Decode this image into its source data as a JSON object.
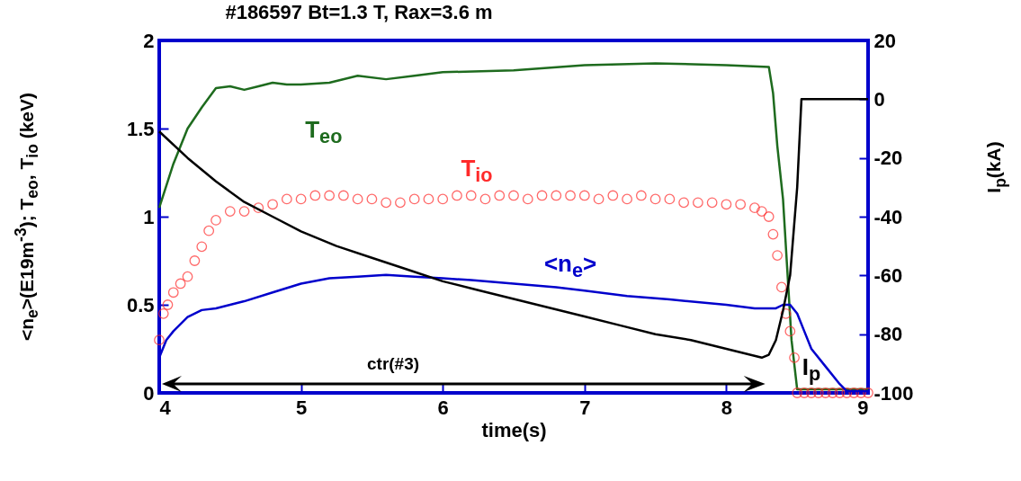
{
  "chart_data": {
    "type": "line",
    "title": "#186597   Bt=1.3 T, Rax=3.6 m",
    "xlabel": "time(s)",
    "ylabel": "<n$_{e}$>(E19m$^{-3}$); T$_{eo}$, T$_{io}$ (keV)",
    "y2label": "I$_{p}$(kA)",
    "annotations": [
      "ctr(#3)"
    ],
    "xlim": [
      4,
      9
    ],
    "xticks": [
      4,
      5,
      6,
      7,
      8,
      9
    ],
    "ylim": [
      0,
      2
    ],
    "yticks": [
      0,
      0.5,
      1,
      1.5,
      2
    ],
    "y2lim": [
      -100,
      20
    ],
    "y2ticks": [
      -100,
      -80,
      -60,
      -40,
      -20,
      0,
      20
    ],
    "grid": false,
    "series": [
      {
        "name": "T$_{eo}$",
        "color": "#1e6b1e",
        "x": [
          4.0,
          4.1,
          4.2,
          4.3,
          4.4,
          4.5,
          4.6,
          4.7,
          4.8,
          4.9,
          5.0,
          5.2,
          5.4,
          5.6,
          5.8,
          6.0,
          6.5,
          7.0,
          7.5,
          8.0,
          8.3,
          8.33,
          8.36,
          8.4,
          8.43,
          8.46,
          8.5,
          8.6,
          8.7,
          8.8,
          8.9,
          9.0
        ],
        "values": [
          1.05,
          1.3,
          1.5,
          1.62,
          1.73,
          1.74,
          1.72,
          1.74,
          1.76,
          1.75,
          1.75,
          1.76,
          1.8,
          1.78,
          1.8,
          1.82,
          1.83,
          1.86,
          1.87,
          1.86,
          1.85,
          1.7,
          1.4,
          1.1,
          0.7,
          0.3,
          0.02,
          0.02,
          0.02,
          0.02,
          0.02,
          0.02
        ]
      },
      {
        "name": "T$_{io}$",
        "type": "scatter",
        "marker": "circle",
        "color": "#ff2a2a",
        "x": [
          4.0,
          4.03,
          4.06,
          4.1,
          4.15,
          4.2,
          4.25,
          4.3,
          4.35,
          4.4,
          4.5,
          4.6,
          4.7,
          4.8,
          4.9,
          5.0,
          5.1,
          5.2,
          5.3,
          5.4,
          5.5,
          5.6,
          5.7,
          5.8,
          5.9,
          6.0,
          6.1,
          6.2,
          6.3,
          6.4,
          6.5,
          6.6,
          6.7,
          6.8,
          6.9,
          7.0,
          7.1,
          7.2,
          7.3,
          7.4,
          7.5,
          7.6,
          7.7,
          7.8,
          7.9,
          8.0,
          8.1,
          8.2,
          8.25,
          8.3,
          8.33,
          8.36,
          8.39,
          8.42,
          8.45,
          8.48,
          8.5,
          8.55,
          8.6,
          8.65,
          8.7,
          8.75,
          8.8,
          8.85,
          8.9,
          8.95,
          9.0
        ],
        "values": [
          0.3,
          0.45,
          0.5,
          0.57,
          0.62,
          0.66,
          0.75,
          0.83,
          0.92,
          0.98,
          1.03,
          1.03,
          1.05,
          1.07,
          1.1,
          1.1,
          1.12,
          1.12,
          1.12,
          1.1,
          1.1,
          1.08,
          1.08,
          1.1,
          1.1,
          1.1,
          1.12,
          1.12,
          1.1,
          1.12,
          1.12,
          1.1,
          1.12,
          1.12,
          1.12,
          1.12,
          1.1,
          1.12,
          1.1,
          1.12,
          1.1,
          1.1,
          1.08,
          1.08,
          1.08,
          1.07,
          1.07,
          1.05,
          1.03,
          1.0,
          0.9,
          0.78,
          0.6,
          0.45,
          0.35,
          0.2,
          0,
          0,
          0,
          0,
          0,
          0,
          0,
          0,
          0,
          0,
          0
        ]
      },
      {
        "name": "<n$_{e}$>",
        "color": "#0000cc",
        "x": [
          4.0,
          4.05,
          4.1,
          4.2,
          4.3,
          4.4,
          4.5,
          4.6,
          4.8,
          5.0,
          5.2,
          5.4,
          5.6,
          5.8,
          6.0,
          6.2,
          6.5,
          6.8,
          7.0,
          7.3,
          7.6,
          8.0,
          8.2,
          8.3,
          8.35,
          8.4,
          8.45,
          8.5,
          8.55,
          8.6,
          8.7,
          8.8,
          8.85,
          9.0
        ],
        "values": [
          0.2,
          0.3,
          0.35,
          0.43,
          0.47,
          0.48,
          0.5,
          0.52,
          0.57,
          0.62,
          0.65,
          0.66,
          0.67,
          0.66,
          0.65,
          0.64,
          0.62,
          0.6,
          0.58,
          0.55,
          0.53,
          0.5,
          0.48,
          0.48,
          0.48,
          0.5,
          0.5,
          0.45,
          0.35,
          0.25,
          0.15,
          0.05,
          0.01,
          0.01
        ]
      },
      {
        "name": "I$_{p}$",
        "axis": "y2",
        "color": "#000000",
        "x": [
          4.0,
          4.2,
          4.4,
          4.6,
          4.8,
          5.0,
          5.25,
          5.5,
          5.75,
          6.0,
          6.25,
          6.5,
          6.75,
          7.0,
          7.25,
          7.5,
          7.75,
          8.0,
          8.25,
          8.3,
          8.35,
          8.4,
          8.45,
          8.5,
          8.53,
          8.56,
          9.0
        ],
        "values": [
          -11,
          -20,
          -28,
          -35,
          -40,
          -45,
          -50,
          -54,
          -58,
          -62,
          -65,
          -68,
          -71,
          -74,
          -77,
          -80,
          -82,
          -85,
          -88,
          -87,
          -82,
          -72,
          -60,
          -30,
          0,
          0,
          0
        ]
      }
    ]
  }
}
